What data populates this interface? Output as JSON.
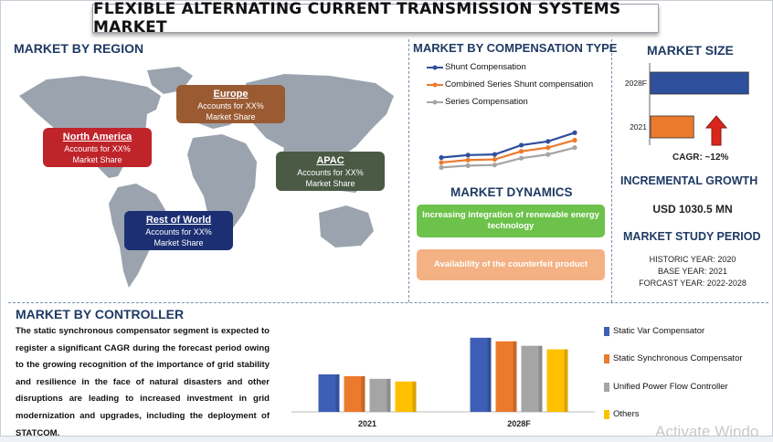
{
  "title": "FLEXIBLE ALTERNATING CURRENT TRANSMISSION SYSTEMS MARKET",
  "region": {
    "title": "MARKET BY REGION",
    "boxes": [
      {
        "name": "North America",
        "text1": "Accounts for XX%",
        "text2": "Market Share",
        "color": "#c0242b"
      },
      {
        "name": "Europe",
        "text1": "Accounts for XX%",
        "text2": "Market Share",
        "color": "#9a5b33"
      },
      {
        "name": "APAC",
        "text1": "Accounts for XX%",
        "text2": "Market Share",
        "color": "#4a5a45"
      },
      {
        "name": "Rest of World",
        "text1": "Accounts for XX%",
        "text2": "Market Share",
        "color": "#1c2f73"
      }
    ]
  },
  "compensation": {
    "title": "MARKET BY COMPENSATION TYPE",
    "legend": [
      "Shunt Compensation",
      "Combined Series Shunt compensation",
      "Series Compensation"
    ],
    "colors": [
      "#2e4f9c",
      "#ec7a2d",
      "#a5a5a5"
    ]
  },
  "dynamics": {
    "title": "MARKET DYNAMICS",
    "driver": "Increasing integration of renewable energy technology",
    "challenge": "Availability of the counterfeit product",
    "driver_color": "#6cc24a",
    "challenge_color": "#f4b183"
  },
  "size": {
    "title": "MARKET SIZE",
    "labels": [
      "2028F",
      "2021"
    ],
    "cagr": "CAGR: ~12%",
    "incremental_title": "INCREMENTAL GROWTH",
    "incremental_value": "USD 1030.5 MN"
  },
  "study": {
    "title": "MARKET STUDY PERIOD",
    "historic": "HISTORIC YEAR: 2020",
    "base": "BASE YEAR: 2021",
    "forecast": "FORCAST YEAR: 2022-2028"
  },
  "controller": {
    "title": "MARKET BY CONTROLLER",
    "text": "The static synchronous compensator segment is expected to register a significant CAGR during the forecast period owing to the growing recognition of the importance of grid stability and resilience in the face of natural disasters and other disruptions are leading to increased investment in grid modernization and upgrades, including the deployment of STATCOM."
  },
  "watermark": "Activate Windo",
  "chart_data": [
    {
      "type": "line",
      "title": "MARKET BY COMPENSATION TYPE",
      "x": [
        1,
        2,
        3,
        4,
        5,
        6
      ],
      "series": [
        {
          "name": "Shunt Compensation",
          "values": [
            3.6,
            4.0,
            4.1,
            5.6,
            6.2,
            7.6
          ]
        },
        {
          "name": "Combined Series Shunt compensation",
          "values": [
            2.8,
            3.2,
            3.3,
            4.6,
            5.2,
            6.4
          ]
        },
        {
          "name": "Series Compensation",
          "values": [
            2.0,
            2.3,
            2.4,
            3.5,
            4.1,
            5.2
          ]
        }
      ],
      "ylim": [
        0,
        10
      ]
    },
    {
      "type": "bar",
      "title": "MARKET SIZE",
      "orientation": "horizontal",
      "categories": [
        "2028F",
        "2021"
      ],
      "values": [
        2.0,
        0.88
      ],
      "colors": [
        "#2e4f9c",
        "#ec7a2d"
      ],
      "xlim": [
        0,
        2.2
      ]
    },
    {
      "type": "bar",
      "title": "MARKET BY CONTROLLER",
      "categories": [
        "2021",
        "2028F"
      ],
      "series": [
        {
          "name": "Static Var Compensator",
          "values": [
            4.2,
            8.3
          ],
          "color": "#3d5fb5"
        },
        {
          "name": "Static Synchronous Compensator",
          "values": [
            4.0,
            7.9
          ],
          "color": "#ec7a2d"
        },
        {
          "name": "Unified Power Flow Controller",
          "values": [
            3.7,
            7.4
          ],
          "color": "#a5a5a5"
        },
        {
          "name": "Others",
          "values": [
            3.4,
            7.0
          ],
          "color": "#ffc000"
        }
      ],
      "ylim": [
        0,
        9
      ]
    }
  ]
}
